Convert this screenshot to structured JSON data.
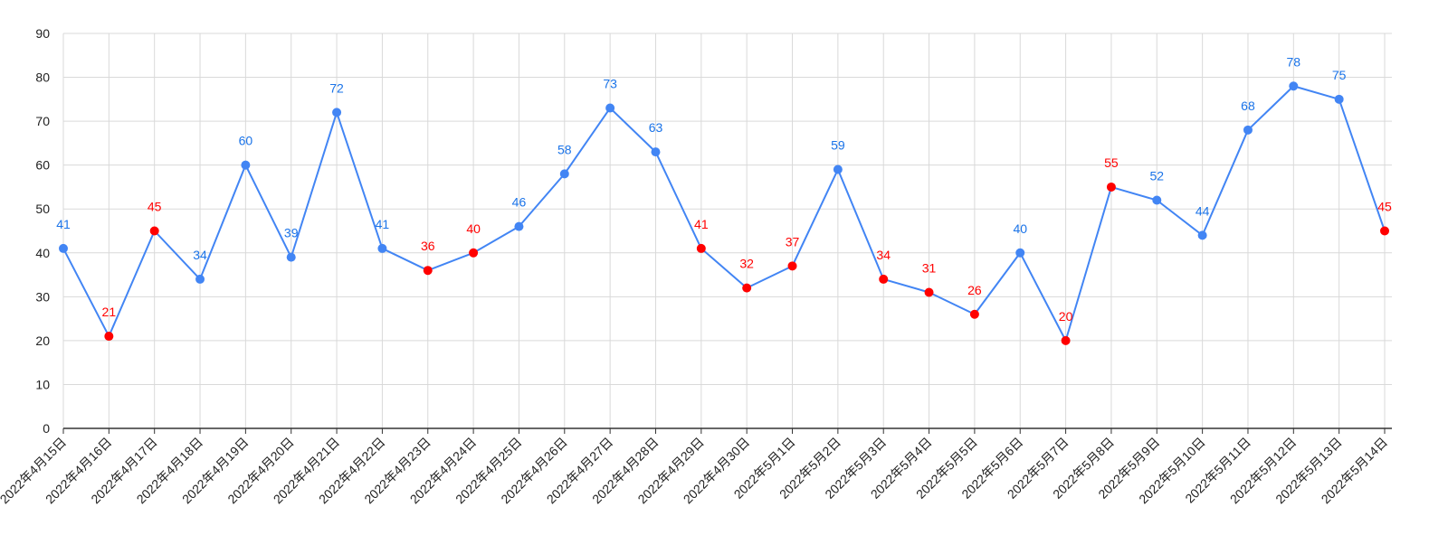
{
  "chart_data": {
    "type": "line",
    "title": "",
    "xlabel": "",
    "ylabel": "",
    "ylim": [
      0,
      90
    ],
    "yticks": [
      0,
      10,
      20,
      30,
      40,
      50,
      60,
      70,
      80,
      90
    ],
    "grid": true,
    "legend": "none",
    "categories": [
      "2022年4月15日",
      "2022年4月16日",
      "2022年4月17日",
      "2022年4月18日",
      "2022年4月19日",
      "2022年4月20日",
      "2022年4月21日",
      "2022年4月22日",
      "2022年4月23日",
      "2022年4月24日",
      "2022年4月25日",
      "2022年4月26日",
      "2022年4月27日",
      "2022年4月28日",
      "2022年4月29日",
      "2022年4月30日",
      "2022年5月1日",
      "2022年5月2日",
      "2022年5月3日",
      "2022年5月4日",
      "2022年5月5日",
      "2022年5月6日",
      "2022年5月7日",
      "2022年5月8日",
      "2022年5月9日",
      "2022年5月10日",
      "2022年5月11日",
      "2022年5月12日",
      "2022年5月13日",
      "2022年5月14日"
    ],
    "series": [
      {
        "values": [
          41,
          21,
          45,
          34,
          60,
          39,
          72,
          41,
          36,
          40,
          46,
          58,
          73,
          63,
          41,
          32,
          37,
          59,
          34,
          31,
          26,
          40,
          20,
          55,
          52,
          44,
          68,
          78,
          75,
          45
        ],
        "highlighted": [
          false,
          true,
          true,
          false,
          false,
          false,
          false,
          false,
          true,
          true,
          false,
          false,
          false,
          false,
          true,
          true,
          true,
          false,
          true,
          true,
          true,
          false,
          true,
          true,
          false,
          false,
          false,
          false,
          false,
          true
        ]
      }
    ],
    "colors": {
      "line": "#4285f4",
      "marker": "#4285f4",
      "highlight": "#ff0000",
      "label": "#1a73e8",
      "grid": "#d9d9d9",
      "axis": "#333333",
      "tick_text": "#222222"
    }
  }
}
